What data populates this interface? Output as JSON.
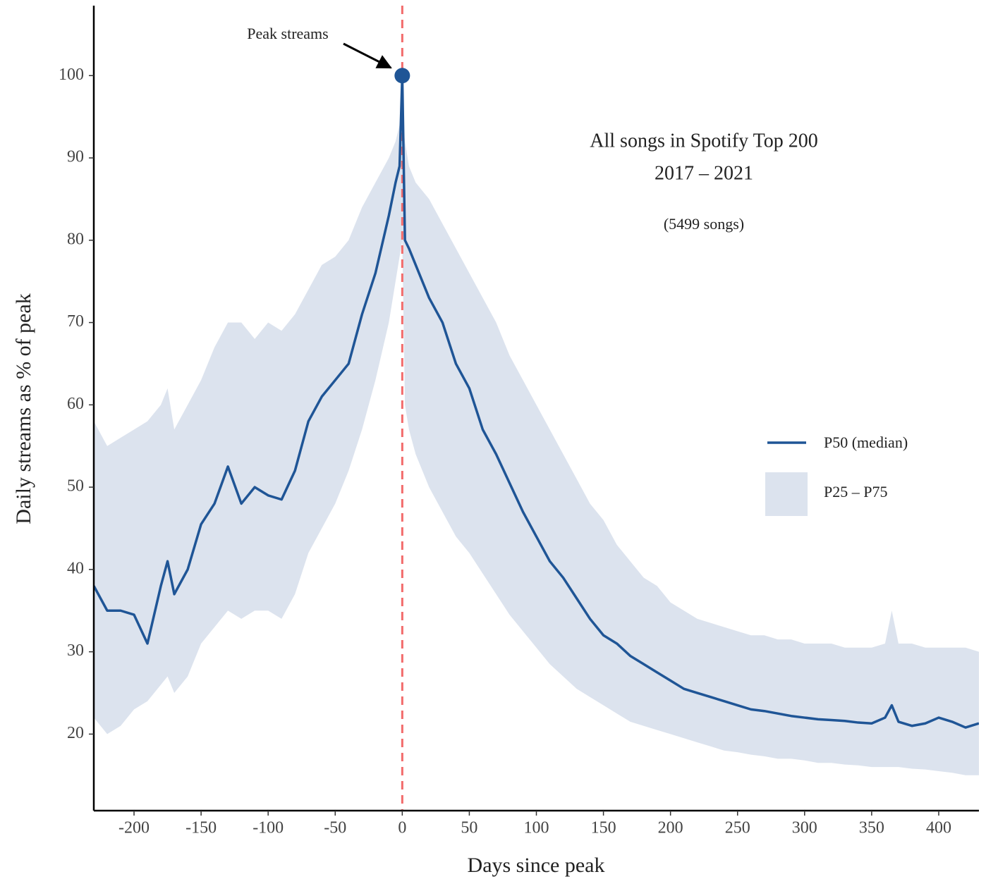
{
  "chart_data": {
    "type": "line",
    "title": [
      "All songs in Spotify Top 200",
      "2017 – 2021"
    ],
    "subtitle": "(5499 songs)",
    "x_label": "Days since peak",
    "y_label": "Daily streams as % of peak",
    "x": [
      -230,
      -220,
      -210,
      -200,
      -190,
      -180,
      -175,
      -170,
      -160,
      -150,
      -140,
      -130,
      -120,
      -110,
      -100,
      -90,
      -80,
      -70,
      -60,
      -50,
      -40,
      -30,
      -20,
      -10,
      -5,
      -2,
      0,
      2,
      5,
      10,
      20,
      30,
      40,
      50,
      60,
      70,
      80,
      90,
      100,
      110,
      120,
      130,
      140,
      150,
      160,
      170,
      180,
      190,
      200,
      210,
      220,
      230,
      240,
      250,
      260,
      270,
      280,
      290,
      300,
      310,
      320,
      330,
      340,
      350,
      360,
      365,
      370,
      380,
      390,
      400,
      410,
      420,
      430
    ],
    "series": [
      {
        "name": "P50 (median)",
        "color": "#1f5596",
        "values": [
          38,
          35,
          35,
          34.5,
          31,
          38,
          41,
          37,
          40,
          45.5,
          48,
          52.5,
          48,
          50,
          49,
          48.5,
          52,
          58,
          61,
          63,
          65,
          71,
          76,
          83,
          87,
          89,
          100,
          80,
          79,
          77,
          73,
          70,
          65,
          62,
          57,
          54,
          50.5,
          47,
          44,
          41,
          39,
          36.5,
          34,
          32,
          31,
          29.5,
          28.5,
          27.5,
          26.5,
          25.5,
          25,
          24.5,
          24,
          23.5,
          23,
          22.8,
          22.5,
          22.2,
          22,
          21.8,
          21.7,
          21.6,
          21.4,
          21.3,
          22,
          23.5,
          21.5,
          21,
          21.3,
          22,
          21.5,
          20.8,
          21.3
        ]
      }
    ],
    "band": {
      "name": "P25 – P75",
      "color": "#dce3ee",
      "upper": [
        58,
        55,
        56,
        57,
        58,
        60,
        62,
        57,
        60,
        63,
        67,
        70,
        70,
        68,
        70,
        69,
        71,
        74,
        77,
        78,
        80,
        84,
        87,
        90,
        92,
        94,
        95,
        92,
        89,
        87,
        85,
        82,
        79,
        76,
        73,
        70,
        66,
        63,
        60,
        57,
        54,
        51,
        48,
        46,
        43,
        41,
        39,
        38,
        36,
        35,
        34,
        33.5,
        33,
        32.5,
        32,
        32,
        31.5,
        31.5,
        31,
        31,
        31,
        30.5,
        30.5,
        30.5,
        31,
        35,
        31,
        31,
        30.5,
        30.5,
        30.5,
        30.5,
        30
      ],
      "lower": [
        22,
        20,
        21,
        23,
        24,
        26,
        27,
        25,
        27,
        31,
        33,
        35,
        34,
        35,
        35,
        34,
        37,
        42,
        45,
        48,
        52,
        57,
        63,
        70,
        75,
        78,
        80,
        60,
        57,
        54,
        50,
        47,
        44,
        42,
        39.5,
        37,
        34.5,
        32.5,
        30.5,
        28.5,
        27,
        25.5,
        24.5,
        23.5,
        22.5,
        21.5,
        21,
        20.5,
        20,
        19.5,
        19,
        18.5,
        18,
        17.8,
        17.5,
        17.3,
        17,
        17,
        16.8,
        16.5,
        16.5,
        16.3,
        16.2,
        16,
        16,
        16,
        16,
        15.8,
        15.7,
        15.5,
        15.3,
        15,
        15
      ]
    },
    "peak": {
      "label": "Peak streams",
      "x": 0,
      "y": 100,
      "color": "#1f5596"
    },
    "vline": {
      "x": 0,
      "color": "#f26b6b"
    },
    "xlim": [
      -230,
      430
    ],
    "ylim": [
      10.7,
      108.5
    ],
    "xticks": [
      -200,
      -150,
      -100,
      -50,
      0,
      50,
      100,
      150,
      200,
      250,
      300,
      350,
      400
    ],
    "yticks": [
      20,
      30,
      40,
      50,
      60,
      70,
      80,
      90,
      100
    ]
  }
}
